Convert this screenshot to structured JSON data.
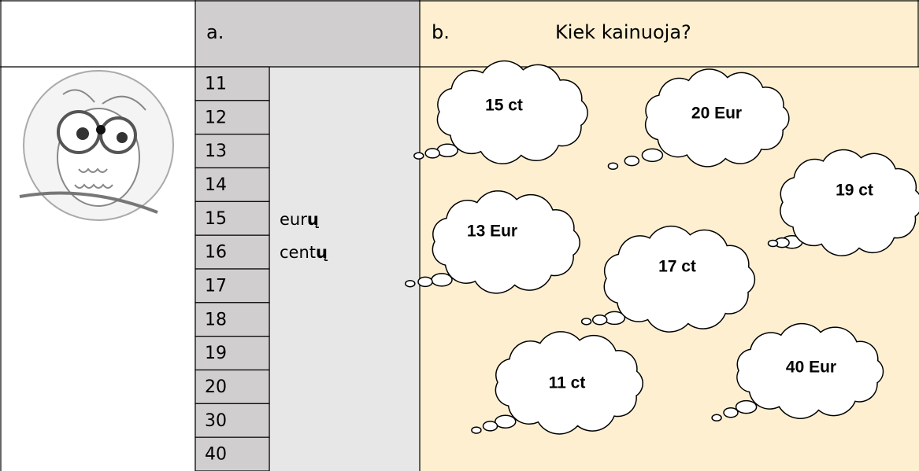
{
  "header": {
    "col_a": "a.",
    "col_b_letter": "b.",
    "col_b_title": "Kiek kainuoja?"
  },
  "numbers": [
    "11",
    "12",
    "13",
    "14",
    "15",
    "16",
    "17",
    "18",
    "19",
    "20",
    "30",
    "40"
  ],
  "units": [
    {
      "stem": "eur",
      "ending": "ų"
    },
    {
      "stem": "cent",
      "ending": "ų"
    }
  ],
  "clouds": [
    "15 ct",
    "20 Eur",
    "19 ct",
    "13 Eur",
    "17 ct",
    "11 ct",
    "40 Eur"
  ]
}
